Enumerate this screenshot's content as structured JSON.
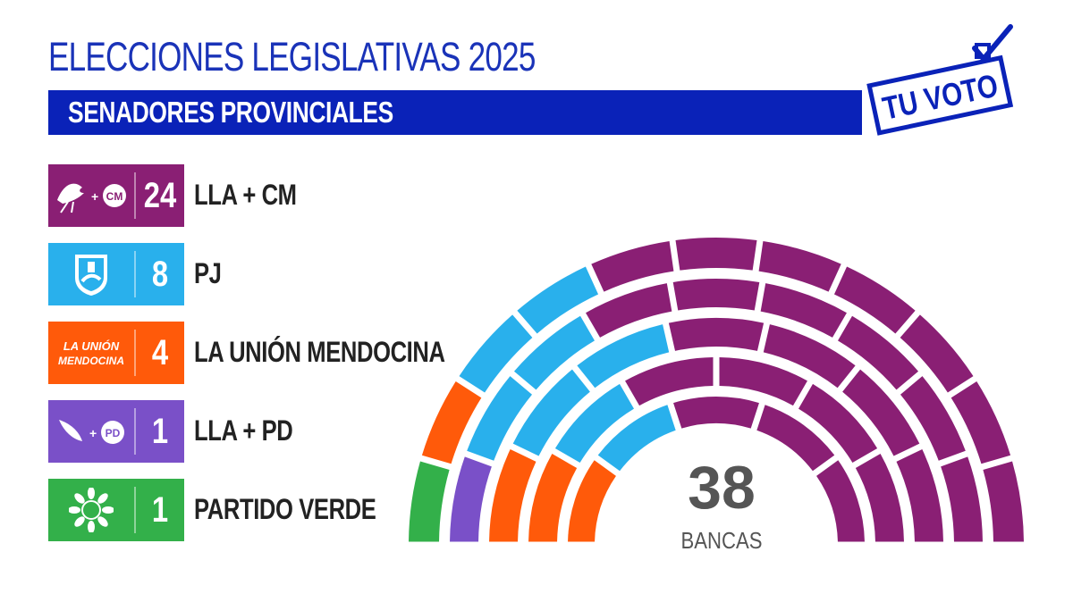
{
  "header": {
    "title": "ELECCIONES LEGISLATIVAS 2025",
    "subtitle": "SENADORES PROVINCIALES",
    "brand": "TU VOTO"
  },
  "chart_data": {
    "type": "parliament",
    "total": 38,
    "total_label": "BANCAS",
    "series": [
      {
        "name": "LLA + CM",
        "value": 24,
        "color": "#8a1f74",
        "logo_icon": "eagle-cm-logo-icon",
        "logo_text": "CM"
      },
      {
        "name": "PJ",
        "value": 8,
        "color": "#29b0ec",
        "logo_icon": "pj-shield-logo-icon"
      },
      {
        "name": "LA UNIÓN MENDOCINA",
        "value": 4,
        "color": "#ff5a0a",
        "logo_icon": "union-mendocina-logo-icon",
        "logo_text": [
          "LA UNIÓN",
          "MENDOCINA"
        ]
      },
      {
        "name": "LLA + PD",
        "value": 1,
        "color": "#7a50c8",
        "logo_icon": "wing-pd-logo-icon",
        "logo_text": "PD"
      },
      {
        "name": "PARTIDO VERDE",
        "value": 1,
        "color": "#33b04a",
        "logo_icon": "sunflower-logo-icon"
      }
    ]
  }
}
